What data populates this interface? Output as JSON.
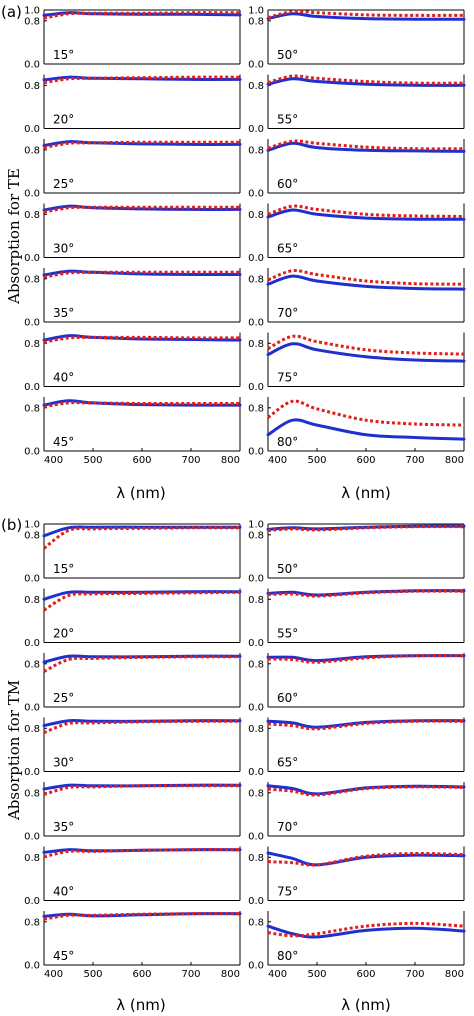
{
  "figure": {
    "parts": [
      {
        "label": "(a)",
        "ylabel": "Absorption for TE",
        "xlabel": "λ (nm)"
      },
      {
        "label": "(b)",
        "ylabel": "Absorption for TM",
        "xlabel": "λ (nm)"
      }
    ],
    "x_ticks": [
      "400",
      "500",
      "600",
      "700",
      "800"
    ],
    "y_ticks": [
      "0.0",
      "0.2",
      "0.4",
      "0.6",
      "0.8",
      "1.0"
    ],
    "colors": {
      "solid": "#1f2fd0",
      "dotted": "#e0201a",
      "axis": "#000000"
    }
  },
  "chart_data": [
    {
      "type": "line",
      "title": "(a)",
      "ylabel": "Absorption for TE",
      "xlabel": "λ (nm)",
      "xlim": [
        400,
        800
      ],
      "ylim": [
        0,
        1
      ],
      "x": [
        400,
        450,
        500,
        600,
        700,
        800
      ],
      "panels": [
        {
          "angle": "15°",
          "series": [
            {
              "style": "solid",
              "values": [
                0.9,
                0.95,
                0.93,
                0.92,
                0.92,
                0.91
              ]
            },
            {
              "style": "dotted",
              "values": [
                0.85,
                0.93,
                0.94,
                0.94,
                0.95,
                0.95
              ]
            }
          ]
        },
        {
          "angle": "20°",
          "series": [
            {
              "style": "solid",
              "values": [
                0.9,
                0.95,
                0.93,
                0.92,
                0.91,
                0.91
              ]
            },
            {
              "style": "dotted",
              "values": [
                0.85,
                0.92,
                0.93,
                0.94,
                0.95,
                0.95
              ]
            }
          ]
        },
        {
          "angle": "25°",
          "series": [
            {
              "style": "solid",
              "values": [
                0.88,
                0.95,
                0.93,
                0.91,
                0.9,
                0.9
              ]
            },
            {
              "style": "dotted",
              "values": [
                0.84,
                0.92,
                0.93,
                0.94,
                0.94,
                0.94
              ]
            }
          ]
        },
        {
          "angle": "30°",
          "series": [
            {
              "style": "solid",
              "values": [
                0.88,
                0.95,
                0.92,
                0.9,
                0.89,
                0.89
              ]
            },
            {
              "style": "dotted",
              "values": [
                0.84,
                0.92,
                0.93,
                0.93,
                0.93,
                0.93
              ]
            }
          ]
        },
        {
          "angle": "35°",
          "series": [
            {
              "style": "solid",
              "values": [
                0.87,
                0.94,
                0.92,
                0.89,
                0.88,
                0.88
              ]
            },
            {
              "style": "dotted",
              "values": [
                0.83,
                0.91,
                0.92,
                0.92,
                0.92,
                0.92
              ]
            }
          ]
        },
        {
          "angle": "40°",
          "series": [
            {
              "style": "solid",
              "values": [
                0.86,
                0.94,
                0.91,
                0.88,
                0.87,
                0.86
              ]
            },
            {
              "style": "dotted",
              "values": [
                0.82,
                0.9,
                0.91,
                0.91,
                0.9,
                0.9
              ]
            }
          ]
        },
        {
          "angle": "45°",
          "series": [
            {
              "style": "solid",
              "values": [
                0.85,
                0.93,
                0.89,
                0.86,
                0.85,
                0.85
              ]
            },
            {
              "style": "dotted",
              "values": [
                0.82,
                0.89,
                0.89,
                0.88,
                0.88,
                0.88
              ]
            }
          ]
        },
        {
          "angle": "50°",
          "series": [
            {
              "style": "solid",
              "values": [
                0.84,
                0.93,
                0.88,
                0.84,
                0.83,
                0.83
              ]
            },
            {
              "style": "dotted",
              "values": [
                0.86,
                0.97,
                0.95,
                0.91,
                0.9,
                0.9
              ]
            }
          ]
        },
        {
          "angle": "55°",
          "series": [
            {
              "style": "solid",
              "values": [
                0.82,
                0.92,
                0.87,
                0.82,
                0.8,
                0.8
              ]
            },
            {
              "style": "dotted",
              "values": [
                0.85,
                0.97,
                0.93,
                0.87,
                0.84,
                0.84
              ]
            }
          ]
        },
        {
          "angle": "60°",
          "series": [
            {
              "style": "solid",
              "values": [
                0.79,
                0.92,
                0.84,
                0.79,
                0.78,
                0.77
              ]
            },
            {
              "style": "dotted",
              "values": [
                0.83,
                0.96,
                0.92,
                0.85,
                0.82,
                0.82
              ]
            }
          ]
        },
        {
          "angle": "65°",
          "series": [
            {
              "style": "solid",
              "values": [
                0.75,
                0.88,
                0.8,
                0.73,
                0.71,
                0.71
              ]
            },
            {
              "style": "dotted",
              "values": [
                0.8,
                0.95,
                0.89,
                0.8,
                0.77,
                0.76
              ]
            }
          ]
        },
        {
          "angle": "70°",
          "series": [
            {
              "style": "solid",
              "values": [
                0.7,
                0.85,
                0.76,
                0.66,
                0.62,
                0.61
              ]
            },
            {
              "style": "dotted",
              "values": [
                0.78,
                0.95,
                0.88,
                0.76,
                0.71,
                0.7
              ]
            }
          ]
        },
        {
          "angle": "75°",
          "series": [
            {
              "style": "solid",
              "values": [
                0.59,
                0.79,
                0.68,
                0.55,
                0.49,
                0.47
              ]
            },
            {
              "style": "dotted",
              "values": [
                0.7,
                0.93,
                0.83,
                0.68,
                0.62,
                0.6
              ]
            }
          ]
        },
        {
          "angle": "80°",
          "series": [
            {
              "style": "solid",
              "values": [
                0.3,
                0.57,
                0.48,
                0.3,
                0.25,
                0.22
              ]
            },
            {
              "style": "dotted",
              "values": [
                0.62,
                0.92,
                0.78,
                0.57,
                0.5,
                0.48
              ]
            }
          ]
        }
      ]
    },
    {
      "type": "line",
      "title": "(b)",
      "ylabel": "Absorption for TM",
      "xlabel": "λ (nm)",
      "xlim": [
        400,
        800
      ],
      "ylim": [
        0,
        1
      ],
      "x": [
        400,
        450,
        500,
        600,
        700,
        800
      ],
      "panels": [
        {
          "angle": "15°",
          "series": [
            {
              "style": "solid",
              "values": [
                0.78,
                0.93,
                0.94,
                0.94,
                0.94,
                0.94
              ]
            },
            {
              "style": "dotted",
              "values": [
                0.55,
                0.88,
                0.91,
                0.92,
                0.93,
                0.93
              ]
            }
          ]
        },
        {
          "angle": "20°",
          "series": [
            {
              "style": "solid",
              "values": [
                0.8,
                0.93,
                0.93,
                0.93,
                0.94,
                0.94
              ]
            },
            {
              "style": "dotted",
              "values": [
                0.6,
                0.87,
                0.9,
                0.91,
                0.92,
                0.93
              ]
            }
          ]
        },
        {
          "angle": "25°",
          "series": [
            {
              "style": "solid",
              "values": [
                0.83,
                0.94,
                0.93,
                0.93,
                0.94,
                0.94
              ]
            },
            {
              "style": "dotted",
              "values": [
                0.66,
                0.88,
                0.9,
                0.92,
                0.93,
                0.93
              ]
            }
          ]
        },
        {
          "angle": "30°",
          "series": [
            {
              "style": "solid",
              "values": [
                0.85,
                0.94,
                0.93,
                0.93,
                0.94,
                0.94
              ]
            },
            {
              "style": "dotted",
              "values": [
                0.72,
                0.89,
                0.9,
                0.92,
                0.93,
                0.93
              ]
            }
          ]
        },
        {
          "angle": "35°",
          "series": [
            {
              "style": "solid",
              "values": [
                0.87,
                0.94,
                0.93,
                0.93,
                0.94,
                0.94
              ]
            },
            {
              "style": "dotted",
              "values": [
                0.77,
                0.9,
                0.91,
                0.93,
                0.93,
                0.93
              ]
            }
          ]
        },
        {
          "angle": "40°",
          "series": [
            {
              "style": "solid",
              "values": [
                0.89,
                0.94,
                0.92,
                0.93,
                0.94,
                0.94
              ]
            },
            {
              "style": "dotted",
              "values": [
                0.81,
                0.91,
                0.91,
                0.93,
                0.94,
                0.94
              ]
            }
          ]
        },
        {
          "angle": "45°",
          "series": [
            {
              "style": "solid",
              "values": [
                0.9,
                0.94,
                0.91,
                0.93,
                0.95,
                0.95
              ]
            },
            {
              "style": "dotted",
              "values": [
                0.85,
                0.92,
                0.92,
                0.94,
                0.95,
                0.95
              ]
            }
          ]
        },
        {
          "angle": "50°",
          "series": [
            {
              "style": "solid",
              "values": [
                0.9,
                0.93,
                0.91,
                0.94,
                0.96,
                0.96
              ]
            },
            {
              "style": "dotted",
              "values": [
                0.88,
                0.91,
                0.89,
                0.93,
                0.95,
                0.95
              ]
            }
          ]
        },
        {
          "angle": "55°",
          "series": [
            {
              "style": "solid",
              "values": [
                0.91,
                0.93,
                0.88,
                0.93,
                0.96,
                0.96
              ]
            },
            {
              "style": "dotted",
              "values": [
                0.89,
                0.9,
                0.86,
                0.92,
                0.95,
                0.95
              ]
            }
          ]
        },
        {
          "angle": "60°",
          "series": [
            {
              "style": "solid",
              "values": [
                0.92,
                0.92,
                0.86,
                0.93,
                0.95,
                0.95
              ]
            },
            {
              "style": "dotted",
              "values": [
                0.89,
                0.88,
                0.83,
                0.91,
                0.95,
                0.95
              ]
            }
          ]
        },
        {
          "angle": "65°",
          "series": [
            {
              "style": "solid",
              "values": [
                0.93,
                0.9,
                0.82,
                0.91,
                0.94,
                0.94
              ]
            },
            {
              "style": "dotted",
              "values": [
                0.88,
                0.85,
                0.79,
                0.89,
                0.93,
                0.93
              ]
            }
          ]
        },
        {
          "angle": "70°",
          "series": [
            {
              "style": "solid",
              "values": [
                0.93,
                0.88,
                0.78,
                0.89,
                0.92,
                0.91
              ]
            },
            {
              "style": "dotted",
              "values": [
                0.87,
                0.83,
                0.76,
                0.88,
                0.91,
                0.9
              ]
            }
          ]
        },
        {
          "angle": "75°",
          "series": [
            {
              "style": "solid",
              "values": [
                0.88,
                0.78,
                0.66,
                0.8,
                0.84,
                0.83
              ]
            },
            {
              "style": "dotted",
              "values": [
                0.72,
                0.7,
                0.66,
                0.82,
                0.87,
                0.85
              ]
            }
          ]
        },
        {
          "angle": "80°",
          "series": [
            {
              "style": "solid",
              "values": [
                0.72,
                0.58,
                0.52,
                0.64,
                0.68,
                0.63
              ]
            },
            {
              "style": "dotted",
              "values": [
                0.6,
                0.54,
                0.58,
                0.72,
                0.77,
                0.72
              ]
            }
          ]
        }
      ]
    }
  ]
}
